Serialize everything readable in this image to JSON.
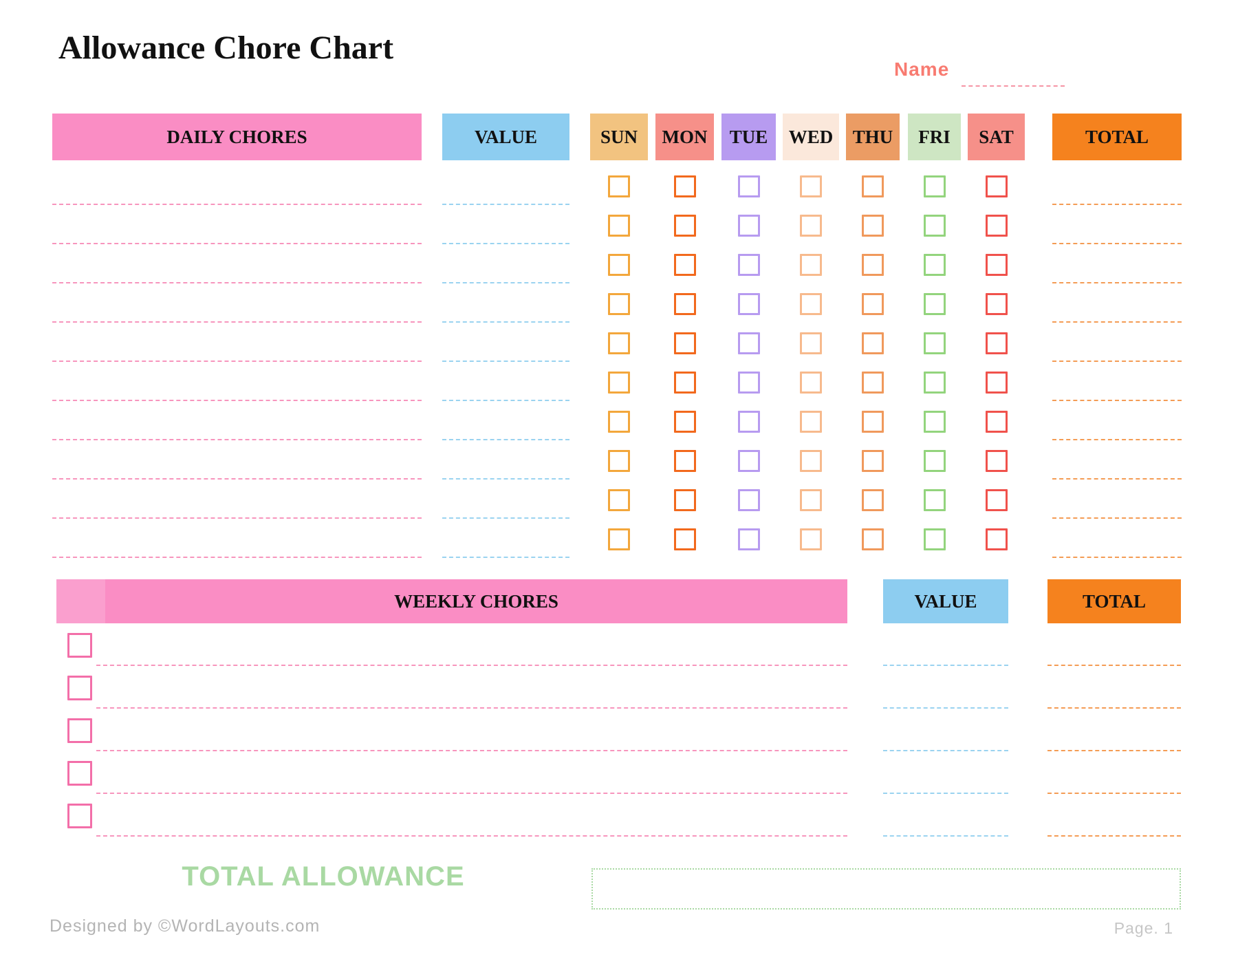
{
  "page": {
    "title": "Allowance Chore Chart",
    "name_label": "Name",
    "total_allowance_label": "TOTAL ALLOWANCE",
    "footer_left": "Designed by ©WordLayouts.com",
    "footer_right": "Page. 1"
  },
  "daily": {
    "chores_header": "DAILY CHORES",
    "value_header": "VALUE",
    "total_header": "TOTAL",
    "rows": 10,
    "days": [
      {
        "label": "SUN",
        "header_bg": "#F2C380",
        "box_color": "#F3A73C"
      },
      {
        "label": "MON",
        "header_bg": "#F69089",
        "box_color": "#F2691D"
      },
      {
        "label": "TUE",
        "header_bg": "#B79BF0",
        "box_color": "#B79BF0"
      },
      {
        "label": "WED",
        "header_bg": "#FBE8DB",
        "box_color": "#F7BA8D"
      },
      {
        "label": "THU",
        "header_bg": "#EB9C64",
        "box_color": "#F0995C"
      },
      {
        "label": "FRI",
        "header_bg": "#CEE6C3",
        "box_color": "#93D47D"
      },
      {
        "label": "SAT",
        "header_bg": "#F69089",
        "box_color": "#F0524C"
      }
    ]
  },
  "weekly": {
    "chores_header": "WEEKLY CHORES",
    "value_header": "VALUE",
    "total_header": "TOTAL",
    "rows": 5
  },
  "colors": {
    "header_pink": "#FA8DC4",
    "header_pink_light": "#FA9FCE",
    "header_blue": "#8DCDF0",
    "header_orange": "#F5821E",
    "line_pink": "#F795BD",
    "line_blue": "#9AD3F0",
    "line_orange": "#F49C55",
    "name_text": "#F87B71",
    "name_line": "#F595A5",
    "weekly_checkbox": "#F36FA9",
    "total_allowance_green": "#A9D9A3",
    "footer_gray": "#B4B4B4"
  }
}
